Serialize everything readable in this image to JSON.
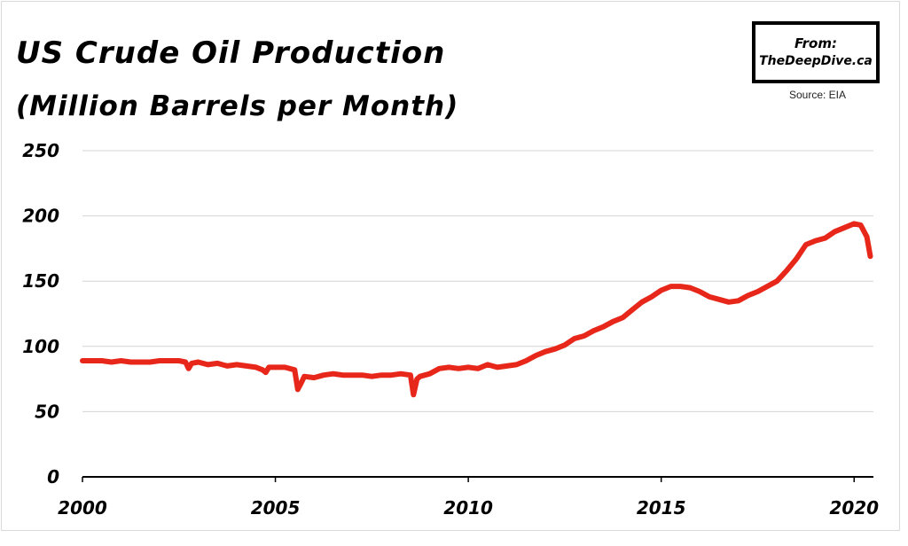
{
  "title": "US Crude Oil Production",
  "subtitle": "(Million Barrels per Month)",
  "badge": {
    "line1": "From:",
    "line2": "TheDeepDive.ca"
  },
  "source": "Source: EIA",
  "colors": {
    "line": "#e8271b",
    "grid": "#d4d4d4",
    "axis": "#000000"
  },
  "chart_data": {
    "type": "line",
    "title": "US Crude Oil Production",
    "subtitle": "(Million Barrels per Month)",
    "xlabel": "",
    "ylabel": "",
    "xlim": [
      2000,
      2020.5
    ],
    "ylim": [
      0,
      250
    ],
    "x_ticks": [
      2000,
      2005,
      2010,
      2015,
      2020
    ],
    "x_tick_labels": [
      "2000",
      "2005",
      "2010",
      "2015",
      "2020"
    ],
    "y_ticks": [
      0,
      50,
      100,
      150,
      200,
      250
    ],
    "y_tick_labels": [
      "0",
      "50",
      "100",
      "150",
      "200",
      "250"
    ],
    "grid": "horizontal",
    "series": [
      {
        "x": [
          2000.0,
          2000.25,
          2000.5,
          2000.75,
          2001.0,
          2001.25,
          2001.5,
          2001.75,
          2002.0,
          2002.25,
          2002.5,
          2002.67,
          2002.75,
          2002.83,
          2003.0,
          2003.25,
          2003.5,
          2003.75,
          2004.0,
          2004.25,
          2004.5,
          2004.67,
          2004.75,
          2004.83,
          2005.0,
          2005.25,
          2005.5,
          2005.58,
          2005.67,
          2005.75,
          2006.0,
          2006.25,
          2006.5,
          2006.75,
          2007.0,
          2007.25,
          2007.5,
          2007.75,
          2008.0,
          2008.25,
          2008.5,
          2008.58,
          2008.67,
          2008.75,
          2009.0,
          2009.25,
          2009.5,
          2009.75,
          2010.0,
          2010.25,
          2010.5,
          2010.75,
          2011.0,
          2011.25,
          2011.5,
          2011.75,
          2012.0,
          2012.25,
          2012.5,
          2012.75,
          2013.0,
          2013.25,
          2013.5,
          2013.75,
          2014.0,
          2014.25,
          2014.5,
          2014.75,
          2015.0,
          2015.25,
          2015.5,
          2015.75,
          2016.0,
          2016.25,
          2016.5,
          2016.75,
          2017.0,
          2017.25,
          2017.5,
          2017.75,
          2018.0,
          2018.25,
          2018.5,
          2018.75,
          2019.0,
          2019.25,
          2019.5,
          2019.75,
          2020.0,
          2020.17,
          2020.33,
          2020.42
        ],
        "values": [
          89,
          89,
          89,
          88,
          89,
          88,
          88,
          88,
          89,
          89,
          89,
          88,
          83,
          87,
          88,
          86,
          87,
          85,
          86,
          85,
          84,
          82,
          80,
          84,
          84,
          84,
          82,
          67,
          72,
          77,
          76,
          78,
          79,
          78,
          78,
          78,
          77,
          78,
          78,
          79,
          78,
          63,
          75,
          77,
          79,
          83,
          84,
          83,
          84,
          83,
          86,
          84,
          85,
          86,
          89,
          93,
          96,
          98,
          101,
          106,
          108,
          112,
          115,
          119,
          122,
          128,
          134,
          138,
          143,
          146,
          146,
          145,
          142,
          138,
          136,
          134,
          135,
          139,
          142,
          146,
          150,
          158,
          167,
          178,
          181,
          183,
          188,
          191,
          194,
          193,
          184,
          169
        ]
      }
    ]
  }
}
